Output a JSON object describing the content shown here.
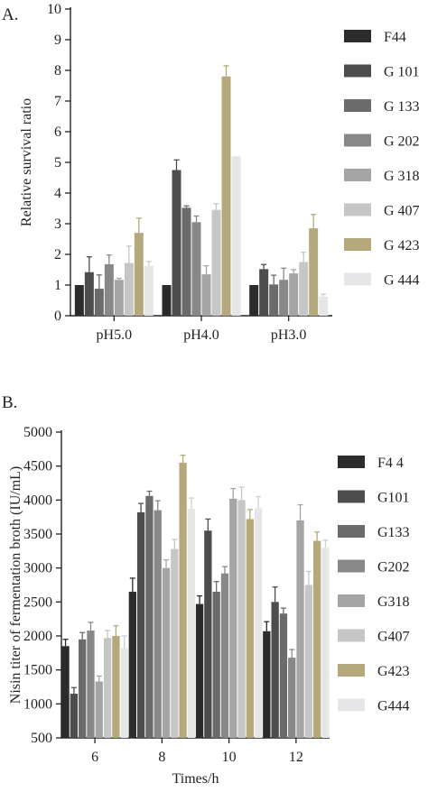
{
  "panels": {
    "a": {
      "label": "A."
    },
    "b": {
      "label": "B."
    }
  },
  "chart_data": [
    {
      "type": "bar",
      "title": "",
      "xlabel": "",
      "ylabel": "Relative survival ratio",
      "ylim": [
        0,
        10
      ],
      "yticks": [
        0,
        1,
        2,
        3,
        4,
        5,
        6,
        7,
        8,
        9,
        10
      ],
      "categories": [
        "pH5.0",
        "pH4.0",
        "pH3.0"
      ],
      "legend_position": "right",
      "series": [
        {
          "name": "F44",
          "color": "#2b2b2b",
          "values": [
            1.0,
            1.0,
            1.0
          ],
          "errors": [
            0.0,
            0.0,
            0.0
          ]
        },
        {
          "name": "G 101",
          "color": "#4d4d4d",
          "values": [
            1.42,
            4.75,
            1.52
          ],
          "errors": [
            0.5,
            0.33,
            0.15
          ]
        },
        {
          "name": "G 133",
          "color": "#6b6b6b",
          "values": [
            0.88,
            3.52,
            1.02
          ],
          "errors": [
            0.45,
            0.06,
            0.3
          ]
        },
        {
          "name": "G 202",
          "color": "#888888",
          "values": [
            1.68,
            3.05,
            1.17
          ],
          "errors": [
            0.3,
            0.2,
            0.38
          ]
        },
        {
          "name": "G 318",
          "color": "#a5a5a5",
          "values": [
            1.17,
            1.35,
            1.38
          ],
          "errors": [
            0.05,
            0.28,
            0.12
          ]
        },
        {
          "name": "G 407",
          "color": "#c6c6c6",
          "values": [
            1.72,
            3.45,
            1.75
          ],
          "errors": [
            0.55,
            0.2,
            0.32
          ]
        },
        {
          "name": "G 423",
          "color": "#b5a97c",
          "values": [
            2.7,
            7.8,
            2.85
          ],
          "errors": [
            0.48,
            0.35,
            0.45
          ]
        },
        {
          "name": "G 444",
          "color": "#e6e6e8",
          "values": [
            1.62,
            5.2,
            0.62
          ],
          "errors": [
            0.15,
            0.0,
            0.08
          ]
        }
      ]
    },
    {
      "type": "bar",
      "title": "",
      "xlabel": "Times/h",
      "ylabel": "Nisin titer of fermentation broth (IU/mL)",
      "ylim": [
        500,
        5000
      ],
      "yticks": [
        500,
        1000,
        1500,
        2000,
        2500,
        3000,
        3500,
        4000,
        4500,
        5000
      ],
      "categories": [
        "6",
        "8",
        "10",
        "12"
      ],
      "legend_position": "right",
      "series": [
        {
          "name": "F4 4",
          "color": "#2b2b2b",
          "values": [
            1850,
            2650,
            2470,
            2070
          ],
          "errors": [
            100,
            200,
            120,
            140
          ]
        },
        {
          "name": "G101",
          "color": "#4d4d4d",
          "values": [
            1150,
            3820,
            3550,
            2500
          ],
          "errors": [
            90,
            130,
            170,
            220
          ]
        },
        {
          "name": "G133",
          "color": "#6b6b6b",
          "values": [
            1950,
            4060,
            2650,
            2330
          ],
          "errors": [
            100,
            70,
            150,
            80
          ]
        },
        {
          "name": "G202",
          "color": "#888888",
          "values": [
            2080,
            3850,
            2920,
            1680
          ],
          "errors": [
            120,
            140,
            100,
            120
          ]
        },
        {
          "name": "G318",
          "color": "#a5a5a5",
          "values": [
            1330,
            3000,
            4020,
            3700
          ],
          "errors": [
            80,
            120,
            150,
            230
          ]
        },
        {
          "name": "G407",
          "color": "#c6c6c6",
          "values": [
            1970,
            3280,
            4000,
            2750
          ],
          "errors": [
            110,
            140,
            190,
            200
          ]
        },
        {
          "name": "G423",
          "color": "#b5a97c",
          "values": [
            2000,
            4550,
            3720,
            3400
          ],
          "errors": [
            150,
            110,
            140,
            130
          ]
        },
        {
          "name": "G444",
          "color": "#e6e6e8",
          "values": [
            1820,
            3870,
            3880,
            3300
          ],
          "errors": [
            180,
            160,
            170,
            110
          ]
        }
      ]
    }
  ]
}
